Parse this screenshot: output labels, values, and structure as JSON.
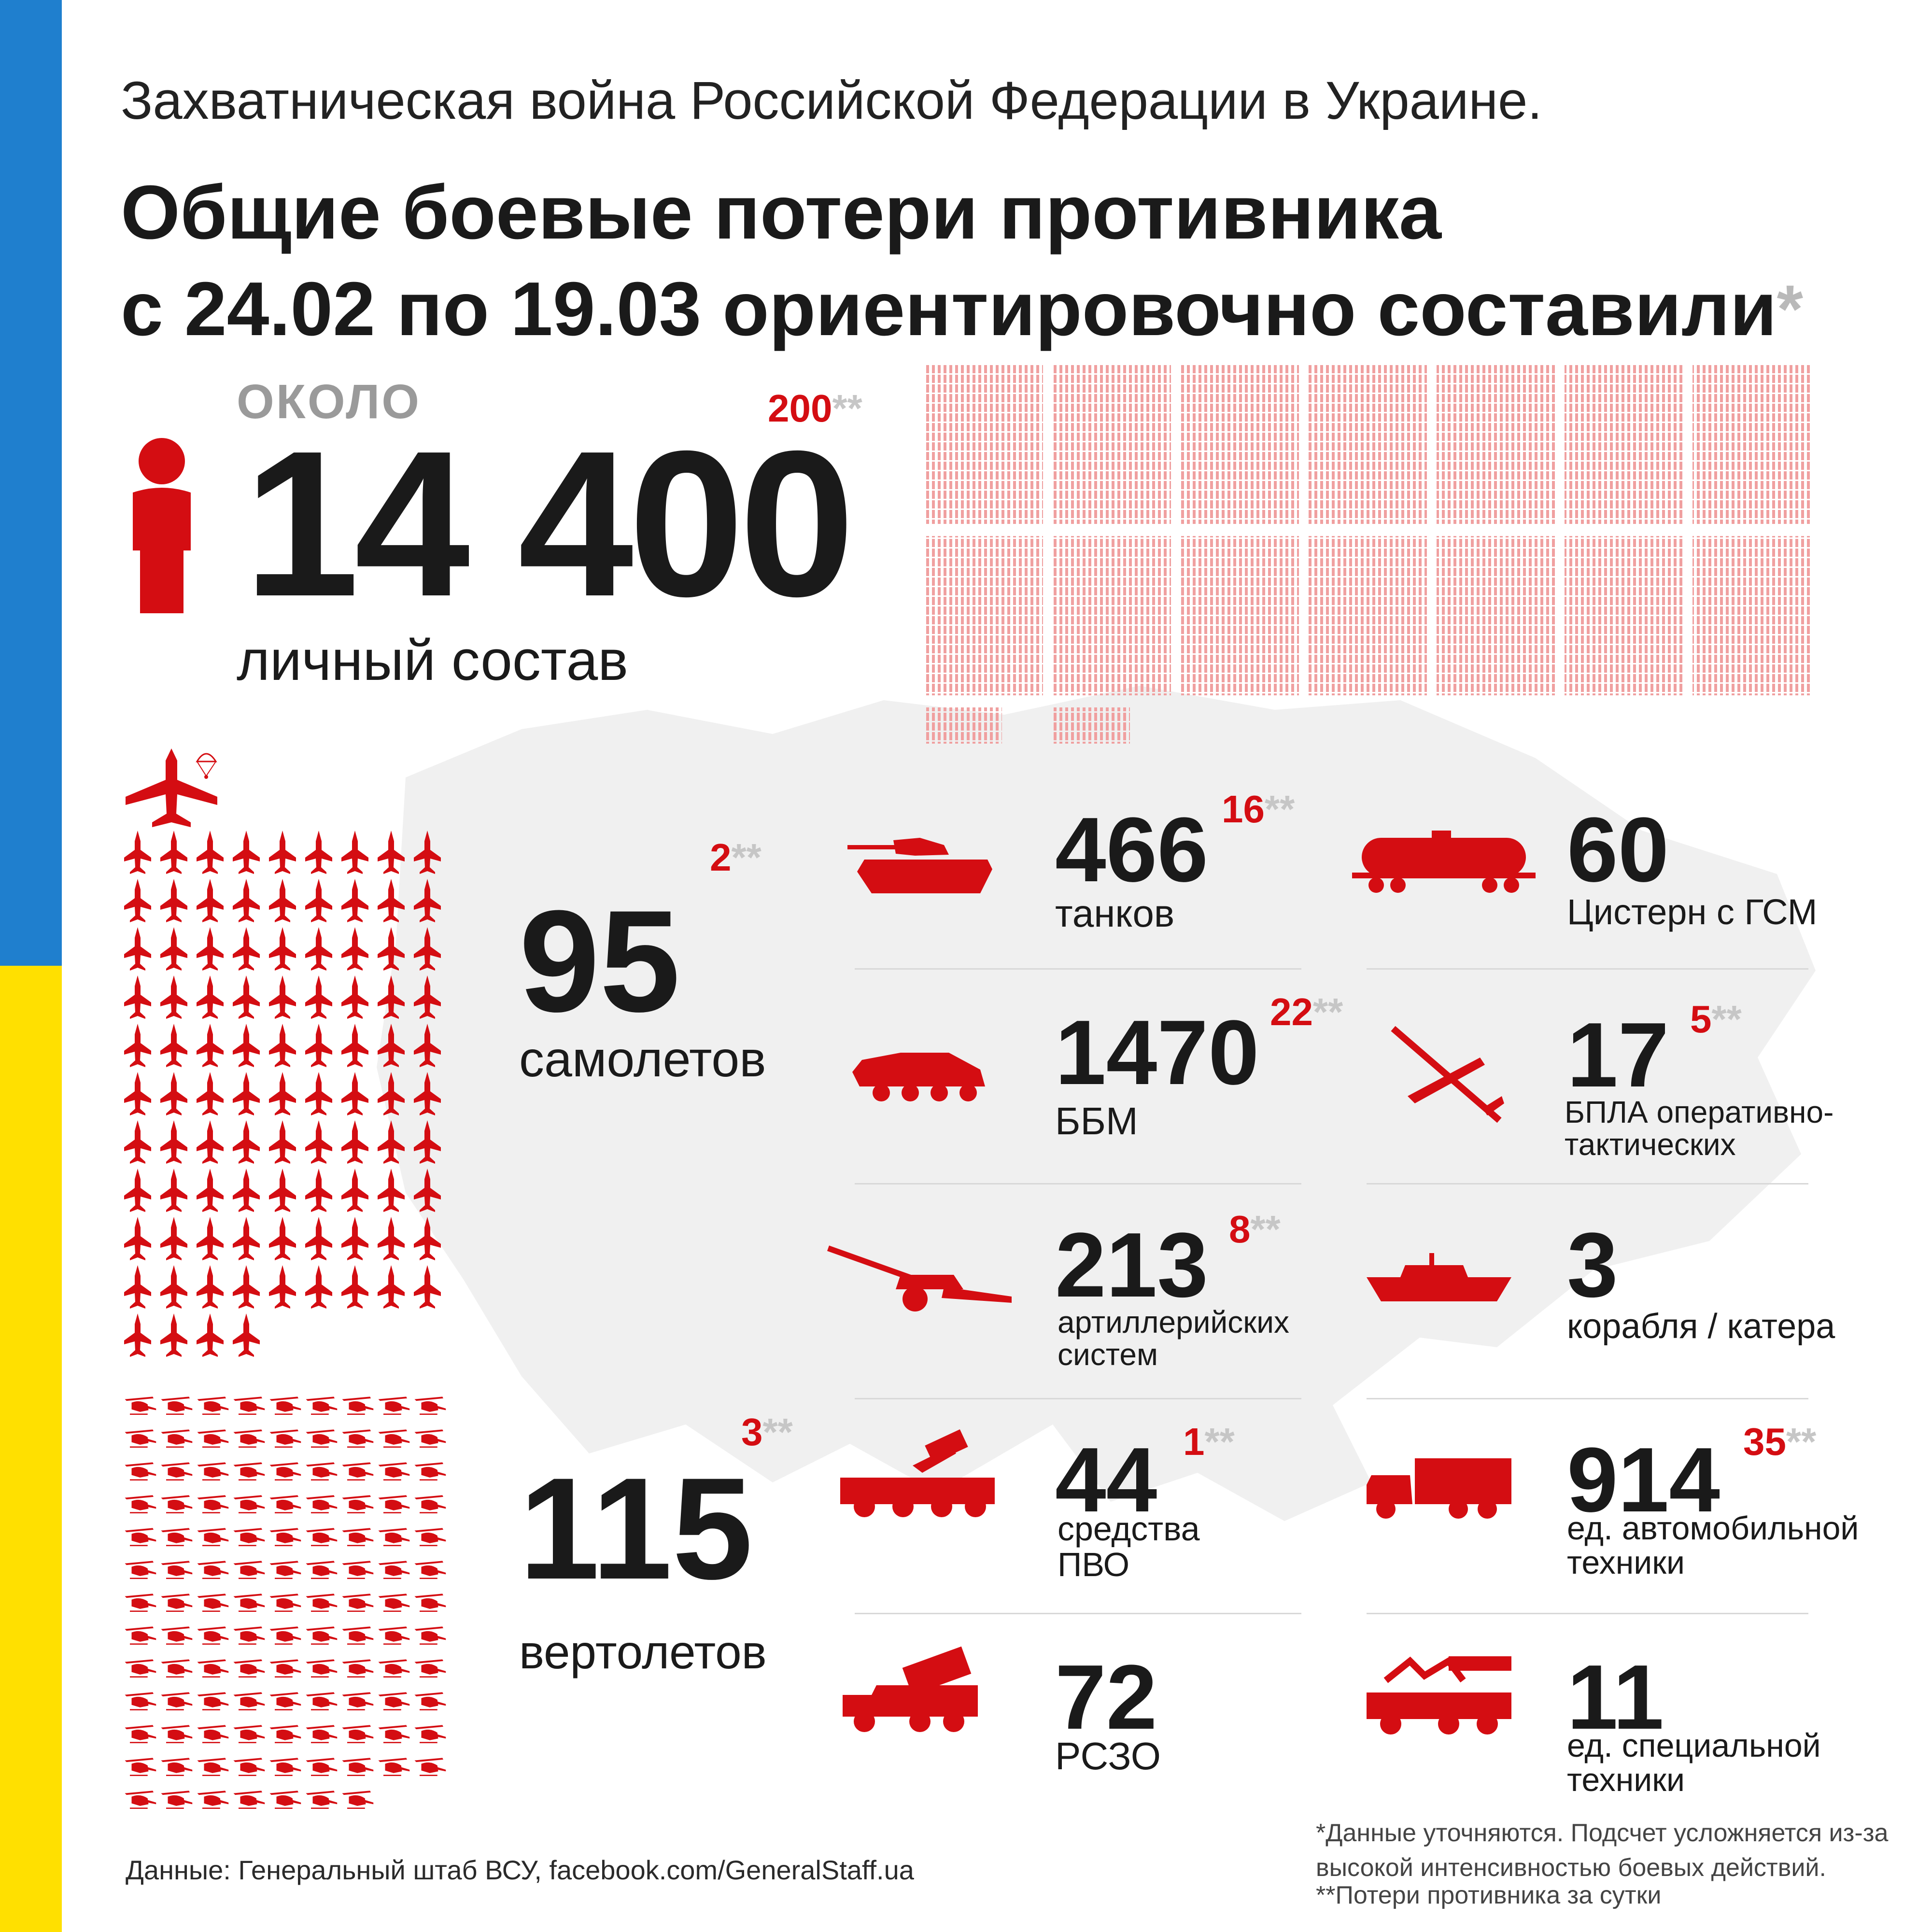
{
  "header": {
    "subtitle": "Захватническая война Российской Федерации в Украине.",
    "title_line1": "Общие боевые потери противника",
    "title_line2": "с 24.02 по 19.03 ориентировочно составили",
    "title_asterisk": "*"
  },
  "personnel": {
    "prefix": "ОКОЛО",
    "value": "14 400",
    "delta": "200",
    "delta_stars": "**",
    "label": "личный состав"
  },
  "aircraft": {
    "value": "95",
    "delta": "2",
    "delta_stars": "**",
    "label": "самолетов"
  },
  "helicopters": {
    "value": "115",
    "delta": "3",
    "delta_stars": "**",
    "label": "вертолетов"
  },
  "equipment": [
    {
      "id": "tanks",
      "value": "466",
      "delta": "16",
      "delta_stars": "**",
      "label_lines": [
        "танков"
      ],
      "icon": "tank-icon"
    },
    {
      "id": "fuel-tanks",
      "value": "60",
      "delta": "",
      "delta_stars": "",
      "label_lines": [
        "Цистерн с ГСМ"
      ],
      "icon": "fuel-tank-car-icon"
    },
    {
      "id": "apc",
      "value": "1470",
      "delta": "22",
      "delta_stars": "**",
      "label_lines": [
        "ББМ"
      ],
      "icon": "apc-icon"
    },
    {
      "id": "uav",
      "value": "17",
      "delta": "5",
      "delta_stars": "**",
      "label_lines": [
        "БПЛА оперативно-",
        "тактических"
      ],
      "icon": "drone-icon"
    },
    {
      "id": "artillery",
      "value": "213",
      "delta": "8",
      "delta_stars": "**",
      "label_lines": [
        "артиллерийских",
        "систем"
      ],
      "icon": "artillery-icon"
    },
    {
      "id": "ships",
      "value": "3",
      "delta": "",
      "delta_stars": "",
      "label_lines": [
        "корабля / катера"
      ],
      "icon": "ship-icon"
    },
    {
      "id": "air-defense",
      "value": "44",
      "delta": "1",
      "delta_stars": "**",
      "label_lines": [
        "средства",
        "ПВО"
      ],
      "icon": "air-defense-icon"
    },
    {
      "id": "vehicles",
      "value": "914",
      "delta": "35",
      "delta_stars": "**",
      "label_lines": [
        "ед. автомобильной",
        "техники"
      ],
      "icon": "truck-icon"
    },
    {
      "id": "mlrs",
      "value": "72",
      "delta": "",
      "delta_stars": "",
      "label_lines": [
        "РСЗО"
      ],
      "icon": "mlrs-icon"
    },
    {
      "id": "special",
      "value": "11",
      "delta": "",
      "delta_stars": "",
      "label_lines": [
        "ед. специальной",
        "техники"
      ],
      "icon": "special-vehicle-icon"
    }
  ],
  "footer": {
    "source": "Данные: Генеральный штаб ВСУ, facebook.com/GeneralStaff.ua",
    "note1_line1": "*Данные уточняются. Подсчет усложняется из-за",
    "note1_line2": "высокой интенсивностью боевых действий.",
    "note2": "**Потери противника за сутки"
  },
  "colors": {
    "accent_red": "#d40d12",
    "flag_blue": "#1f7fce",
    "flag_yellow": "#ffe000",
    "text_dark": "#1a1a1a",
    "muted_gray": "#9a9a9a",
    "map_gray": "#f0f0f0",
    "pictogram_pink": "#f0a0a0"
  }
}
